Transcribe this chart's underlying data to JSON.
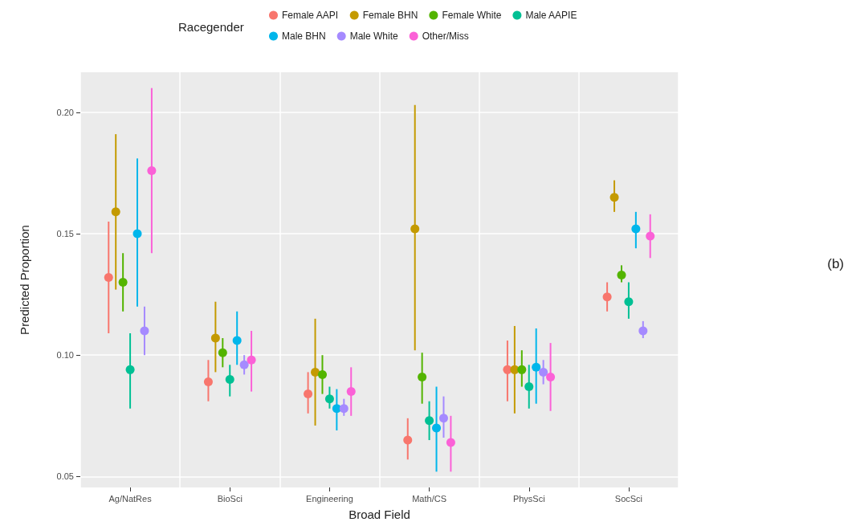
{
  "chart_data": {
    "type": "scatter",
    "xlabel": "Broad Field",
    "ylabel": "Predicted Proportion",
    "legend_title": "Racegender",
    "legend": "top",
    "grid": true,
    "marker": "circle",
    "annotations": [
      "(b)"
    ],
    "categories": [
      "Ag/NatRes",
      "BioSci",
      "Engineering",
      "Math/CS",
      "PhysSci",
      "SocSci"
    ],
    "ylim": [
      0.0455,
      0.2165
    ],
    "yticks": [
      {
        "value": 0.05,
        "label": "0.05"
      },
      {
        "value": 0.1,
        "label": "0.10"
      },
      {
        "value": 0.15,
        "label": "0.15"
      },
      {
        "value": 0.2,
        "label": "0.20"
      }
    ],
    "series": [
      {
        "name": "Female AAPI",
        "color": "#f8766d",
        "values": [
          0.132,
          0.089,
          0.084,
          0.065,
          0.094,
          0.124
        ],
        "errors": [
          [
            0.109,
            0.155
          ],
          [
            0.081,
            0.098
          ],
          [
            0.076,
            0.093
          ],
          [
            0.057,
            0.074
          ],
          [
            0.081,
            0.106
          ],
          [
            0.118,
            0.13
          ]
        ]
      },
      {
        "name": "Female BHN",
        "color": "#c49a00",
        "values": [
          0.159,
          0.107,
          0.093,
          0.152,
          0.094,
          0.165
        ],
        "errors": [
          [
            0.127,
            0.191
          ],
          [
            0.093,
            0.122
          ],
          [
            0.071,
            0.115
          ],
          [
            0.102,
            0.203
          ],
          [
            0.076,
            0.112
          ],
          [
            0.159,
            0.172
          ]
        ]
      },
      {
        "name": "Female White",
        "color": "#53b400",
        "values": [
          0.13,
          0.101,
          0.092,
          0.091,
          0.094,
          0.133
        ],
        "errors": [
          [
            0.118,
            0.142
          ],
          [
            0.095,
            0.107
          ],
          [
            0.084,
            0.1
          ],
          [
            0.08,
            0.101
          ],
          [
            0.087,
            0.102
          ],
          [
            0.13,
            0.137
          ]
        ]
      },
      {
        "name": "Male AAPIE",
        "color": "#00c094",
        "values": [
          0.094,
          0.09,
          0.082,
          0.073,
          0.087,
          0.122
        ],
        "errors": [
          [
            0.078,
            0.109
          ],
          [
            0.083,
            0.096
          ],
          [
            0.078,
            0.087
          ],
          [
            0.065,
            0.081
          ],
          [
            0.078,
            0.096
          ],
          [
            0.115,
            0.13
          ]
        ]
      },
      {
        "name": "Male BHN",
        "color": "#00b6eb",
        "values": [
          0.15,
          0.106,
          0.078,
          0.07,
          0.095,
          0.152
        ],
        "errors": [
          [
            0.12,
            0.181
          ],
          [
            0.096,
            0.118
          ],
          [
            0.069,
            0.086
          ],
          [
            0.052,
            0.087
          ],
          [
            0.08,
            0.111
          ],
          [
            0.144,
            0.159
          ]
        ]
      },
      {
        "name": "Male White",
        "color": "#a58aff",
        "values": [
          0.11,
          0.096,
          0.078,
          0.074,
          0.093,
          0.11
        ],
        "errors": [
          [
            0.1,
            0.12
          ],
          [
            0.092,
            0.1
          ],
          [
            0.075,
            0.082
          ],
          [
            0.066,
            0.083
          ],
          [
            0.088,
            0.098
          ],
          [
            0.107,
            0.114
          ]
        ]
      },
      {
        "name": "Other/Miss",
        "color": "#fb61d7",
        "values": [
          0.176,
          0.098,
          0.085,
          0.064,
          0.091,
          0.149
        ],
        "errors": [
          [
            0.142,
            0.21
          ],
          [
            0.085,
            0.11
          ],
          [
            0.075,
            0.095
          ],
          [
            0.052,
            0.075
          ],
          [
            0.077,
            0.105
          ],
          [
            0.14,
            0.158
          ]
        ]
      }
    ]
  }
}
